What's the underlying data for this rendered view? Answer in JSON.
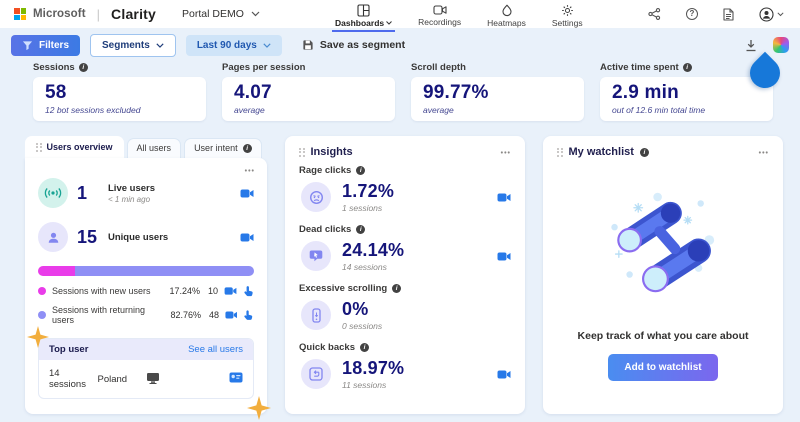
{
  "topbar": {
    "microsoft": "Microsoft",
    "clarity": "Clarity",
    "project": "Portal DEMO",
    "nav": [
      {
        "label": "Dashboards",
        "active": true
      },
      {
        "label": "Recordings",
        "active": false
      },
      {
        "label": "Heatmaps",
        "active": false
      },
      {
        "label": "Settings",
        "active": false
      }
    ]
  },
  "filterbar": {
    "filters": "Filters",
    "segments": "Segments",
    "date_range": "Last 90 days",
    "save_as_segment": "Save as segment"
  },
  "metrics": [
    {
      "label": "Sessions",
      "value": "58",
      "sub": "12 bot sessions excluded"
    },
    {
      "label": "Pages per session",
      "value": "4.07",
      "sub": "average"
    },
    {
      "label": "Scroll depth",
      "value": "99.77%",
      "sub": "average"
    },
    {
      "label": "Active time spent",
      "value": "2.9 min",
      "sub": "out of 12.6 min total time"
    }
  ],
  "users_card": {
    "tabs": [
      {
        "label": "Users overview"
      },
      {
        "label": "All users"
      },
      {
        "label": "User intent"
      }
    ],
    "live_users": {
      "value": "1",
      "label": "Live users",
      "sub": "< 1 min ago"
    },
    "unique_users": {
      "value": "15",
      "label": "Unique users"
    },
    "bar": {
      "new_pct": 17.24,
      "returning_pct": 82.76
    },
    "legend": [
      {
        "label": "Sessions with new users",
        "pct": "17.24%",
        "count": "10"
      },
      {
        "label": "Sessions with returning users",
        "pct": "82.76%",
        "count": "48"
      }
    ],
    "top_user": {
      "header": "Top user",
      "link": "See all users",
      "sessions": "14 sessions",
      "country": "Poland"
    }
  },
  "insights": {
    "title": "Insights",
    "items": [
      {
        "label": "Rage clicks",
        "value": "1.72%",
        "sub": "1 sessions"
      },
      {
        "label": "Dead clicks",
        "value": "24.14%",
        "sub": "14 sessions"
      },
      {
        "label": "Excessive scrolling",
        "value": "0%",
        "sub": "0 sessions"
      },
      {
        "label": "Quick backs",
        "value": "18.97%",
        "sub": "11 sessions"
      }
    ]
  },
  "watchlist": {
    "title": "My watchlist",
    "message": "Keep track of what you care about",
    "button": "Add to watchlist"
  },
  "colors": {
    "accent_blue": "#2779e8",
    "navy": "#15157a",
    "magenta": "#e93ce9",
    "purple": "#8f8ff5",
    "page_bg": "#e9f1fa",
    "active_underline": "#4f6bed",
    "button_gradient_start": "#4a8df0",
    "button_gradient_end": "#7b67ee"
  }
}
